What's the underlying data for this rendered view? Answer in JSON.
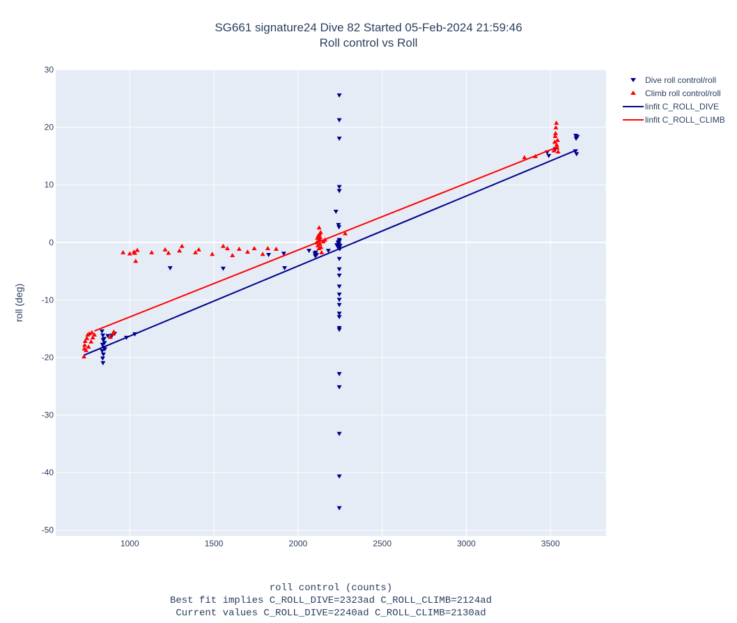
{
  "chart_data": {
    "type": "scatter",
    "title": "SG661 signature24 Dive 82 Started 05-Feb-2024 21:59:46",
    "subtitle": "Roll control vs Roll",
    "xlabel": "roll control (counts)",
    "xlabel_line2": "Best fit implies C_ROLL_DIVE=2323ad C_ROLL_CLIMB=2124ad",
    "xlabel_line3": "Current values C_ROLL_DIVE=2240ad C_ROLL_CLIMB=2130ad",
    "ylabel": "roll (deg)",
    "xlim": [
      560,
      3830
    ],
    "ylim": [
      -51,
      30
    ],
    "xticks": [
      1000,
      1500,
      2000,
      2500,
      3000,
      3500
    ],
    "yticks": [
      30,
      20,
      10,
      0,
      -10,
      -20,
      -30,
      -40,
      -50
    ],
    "grid": true,
    "legend_position": "top-right",
    "colors": {
      "dive": "#00008b",
      "climb": "#ff0000",
      "plot_bg": "#e5ecf6",
      "grid": "#ffffff"
    },
    "series": [
      {
        "name": "Dive roll control/roll",
        "marker": "triangle-down",
        "color": "#00008b",
        "points": [
          [
            835,
            -15.5
          ],
          [
            840,
            -16.2
          ],
          [
            842,
            -17.0
          ],
          [
            838,
            -17.8
          ],
          [
            845,
            -18.3
          ],
          [
            836,
            -18.9
          ],
          [
            843,
            -19.5
          ],
          [
            839,
            -20.2
          ],
          [
            841,
            -21.0
          ],
          [
            848,
            -16.8
          ],
          [
            850,
            -17.5
          ],
          [
            852,
            -18.6
          ],
          [
            870,
            -16.3
          ],
          [
            895,
            -16.2
          ],
          [
            910,
            -15.9
          ],
          [
            980,
            -16.6
          ],
          [
            1030,
            -16.0
          ],
          [
            1240,
            -4.5
          ],
          [
            1555,
            -4.6
          ],
          [
            1825,
            -2.2
          ],
          [
            1920,
            -4.5
          ],
          [
            1915,
            -2.0
          ],
          [
            2065,
            -1.5
          ],
          [
            2100,
            -2.0
          ],
          [
            2102,
            -2.4
          ],
          [
            2105,
            -1.8
          ],
          [
            2110,
            -2.2
          ],
          [
            2180,
            -1.5
          ],
          [
            2230,
            -0.5
          ],
          [
            2235,
            -0.8
          ],
          [
            2240,
            0.0
          ],
          [
            2242,
            -0.3
          ],
          [
            2245,
            0.4
          ],
          [
            2248,
            -1.2
          ],
          [
            2250,
            -0.6
          ],
          [
            2238,
            -0.1
          ],
          [
            2244,
            -1.0
          ],
          [
            2246,
            0.2
          ],
          [
            2245,
            25.5
          ],
          [
            2245,
            21.2
          ],
          [
            2245,
            18.0
          ],
          [
            2245,
            9.6
          ],
          [
            2245,
            8.9
          ],
          [
            2225,
            5.3
          ],
          [
            2240,
            3.0
          ],
          [
            2243,
            2.6
          ],
          [
            2245,
            -2.9
          ],
          [
            2245,
            -4.7
          ],
          [
            2245,
            -5.8
          ],
          [
            2245,
            -7.7
          ],
          [
            2245,
            -9.1
          ],
          [
            2245,
            -10.0
          ],
          [
            2245,
            -10.9
          ],
          [
            2245,
            -12.4
          ],
          [
            2245,
            -13.0
          ],
          [
            2245,
            -14.9
          ],
          [
            2245,
            -15.2
          ],
          [
            2245,
            -22.9
          ],
          [
            2245,
            -25.2
          ],
          [
            2245,
            -33.3
          ],
          [
            2245,
            -40.7
          ],
          [
            2245,
            -46.2
          ],
          [
            3480,
            15.6
          ],
          [
            3490,
            15.0
          ],
          [
            3530,
            16.2
          ],
          [
            3650,
            18.5
          ],
          [
            3652,
            18.0
          ],
          [
            3648,
            15.8
          ],
          [
            3655,
            15.3
          ],
          [
            3660,
            18.3
          ]
        ]
      },
      {
        "name": "Climb roll control/roll",
        "marker": "triangle-up",
        "color": "#ff0000",
        "points": [
          [
            728,
            -19.8
          ],
          [
            730,
            -18.4
          ],
          [
            732,
            -17.8
          ],
          [
            735,
            -17.1
          ],
          [
            740,
            -18.7
          ],
          [
            745,
            -16.6
          ],
          [
            750,
            -16.0
          ],
          [
            755,
            -18.1
          ],
          [
            760,
            -15.8
          ],
          [
            770,
            -17.2
          ],
          [
            775,
            -15.6
          ],
          [
            780,
            -16.5
          ],
          [
            790,
            -16.0
          ],
          [
            885,
            -16.4
          ],
          [
            900,
            -15.8
          ],
          [
            905,
            -15.5
          ],
          [
            960,
            -1.7
          ],
          [
            1000,
            -1.9
          ],
          [
            1025,
            -1.6
          ],
          [
            1030,
            -1.8
          ],
          [
            1035,
            -3.2
          ],
          [
            1045,
            -1.3
          ],
          [
            1130,
            -1.7
          ],
          [
            1210,
            -1.2
          ],
          [
            1230,
            -1.8
          ],
          [
            1295,
            -1.4
          ],
          [
            1310,
            -0.6
          ],
          [
            1390,
            -1.7
          ],
          [
            1410,
            -1.2
          ],
          [
            1490,
            -2.0
          ],
          [
            1555,
            -0.6
          ],
          [
            1580,
            -1.0
          ],
          [
            1610,
            -2.2
          ],
          [
            1650,
            -1.1
          ],
          [
            1700,
            -1.6
          ],
          [
            1740,
            -1.0
          ],
          [
            1790,
            -2.0
          ],
          [
            1820,
            -1.0
          ],
          [
            1870,
            -1.1
          ],
          [
            2110,
            0.0
          ],
          [
            2115,
            0.8
          ],
          [
            2118,
            -0.5
          ],
          [
            2120,
            1.2
          ],
          [
            2122,
            0.3
          ],
          [
            2124,
            -1.0
          ],
          [
            2126,
            0.6
          ],
          [
            2128,
            1.5
          ],
          [
            2130,
            -0.2
          ],
          [
            2132,
            0.9
          ],
          [
            2134,
            1.8
          ],
          [
            2136,
            -0.8
          ],
          [
            2125,
            2.6
          ],
          [
            2140,
            -1.7
          ],
          [
            2150,
            0.2
          ],
          [
            2160,
            0.5
          ],
          [
            2280,
            1.6
          ],
          [
            3345,
            14.8
          ],
          [
            3410,
            15.0
          ],
          [
            3520,
            16.0
          ],
          [
            3525,
            17.5
          ],
          [
            3528,
            18.5
          ],
          [
            3530,
            19.0
          ],
          [
            3532,
            20.0
          ],
          [
            3535,
            20.8
          ],
          [
            3537,
            17.0
          ],
          [
            3540,
            16.5
          ],
          [
            3542,
            17.8
          ],
          [
            3545,
            15.8
          ]
        ]
      },
      {
        "name": "linfit C_ROLL_DIVE",
        "type": "line",
        "color": "#00008b",
        "x": [
          728,
          3660
        ],
        "y": [
          -19.6,
          16.1
        ]
      },
      {
        "name": "linfit C_ROLL_CLIMB",
        "type": "line",
        "color": "#ff0000",
        "x": [
          790,
          3545
        ],
        "y": [
          -15.4,
          16.6
        ]
      }
    ]
  }
}
